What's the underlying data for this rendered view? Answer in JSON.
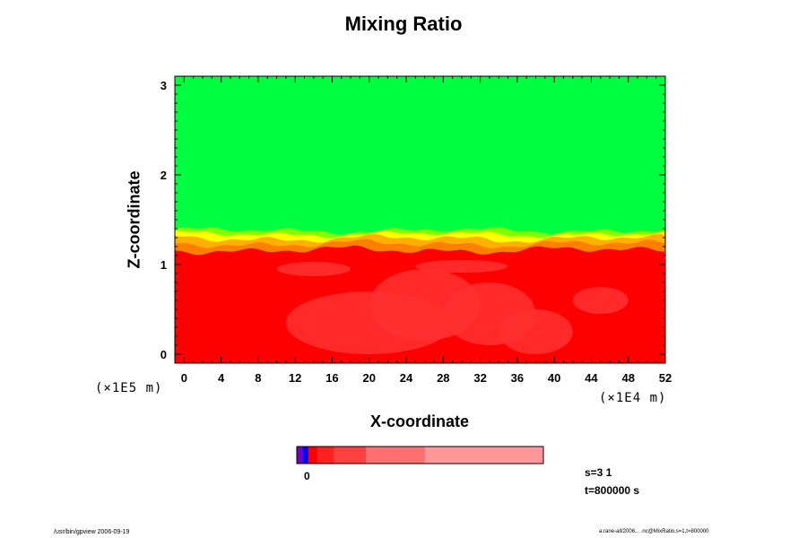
{
  "chart_data": {
    "type": "heatmap",
    "title": "Mixing Ratio",
    "xlabel": "X-coordinate",
    "ylabel": "Z-coordinate",
    "x_scale_note": "(×1E4 m)",
    "y_scale_note": "(×1E5 m)",
    "xlim": [
      -1,
      52
    ],
    "ylim": [
      -0.1,
      3.1
    ],
    "x_ticks": [
      0,
      4,
      8,
      12,
      16,
      20,
      24,
      28,
      32,
      36,
      40,
      44,
      48,
      52
    ],
    "y_ticks": [
      0,
      1,
      2,
      3
    ],
    "field": {
      "upper_layer": {
        "value_level": "lowest",
        "color": "#00ff40",
        "z_range": [
          1.4,
          3.1
        ]
      },
      "transition_band": {
        "colors": [
          "#80ff00",
          "#ffff00",
          "#ffb000",
          "#ff8000"
        ],
        "approx_z": [
          1.15,
          1.45
        ]
      },
      "lower_layer": {
        "color": "#ff0000",
        "z_range": [
          -0.1,
          1.2
        ]
      },
      "inner_structure_color": "#ff3030"
    },
    "colorbar": {
      "zero_label": "0",
      "segments": [
        {
          "color": "#7000c0",
          "fraction": 0.025
        },
        {
          "color": "#0000ff",
          "fraction": 0.022
        },
        {
          "color": "#ff0000",
          "fraction": 0.035
        },
        {
          "color": "#ff2020",
          "fraction": 0.068
        },
        {
          "color": "#ff4040",
          "fraction": 0.13
        },
        {
          "color": "#ff7070",
          "fraction": 0.24
        },
        {
          "color": "#ff9898",
          "fraction": 0.48
        }
      ]
    },
    "info": {
      "s": "s=3 1",
      "t": "t=800000 s"
    }
  },
  "footer": {
    "left": "/usr/bin/gpview 2006-09-19",
    "right": "a.rane-all/2006... .nc@MixRatio,s=1,t=800000"
  }
}
